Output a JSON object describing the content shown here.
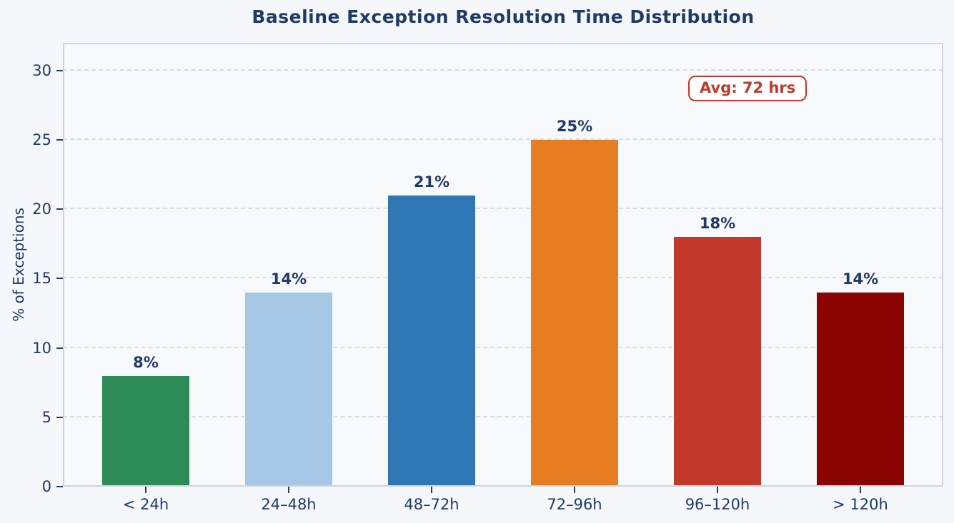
{
  "figure": {
    "background": "#f5f7fb",
    "plot_background": "#f8f9fc"
  },
  "chart_data": {
    "type": "bar",
    "title": "Baseline Exception Resolution Time Distribution",
    "xlabel": "",
    "ylabel": "% of Exceptions",
    "categories": [
      "< 24h",
      "24–48h",
      "48–72h",
      "72–96h",
      "96–120h",
      "> 120h"
    ],
    "values": [
      8,
      14,
      21,
      25,
      18,
      14
    ],
    "value_labels": [
      "8%",
      "14%",
      "21%",
      "25%",
      "18%",
      "14%"
    ],
    "bar_colors": [
      "#2e8b57",
      "#a6c8e4",
      "#2f76b4",
      "#e77c22",
      "#c2392b",
      "#8b0404"
    ],
    "ylim": [
      0,
      32
    ],
    "yticks": [
      0,
      5,
      10,
      15,
      20,
      25,
      30
    ],
    "grid": "horizontal-dashed",
    "legend": "none",
    "annotation": "Avg: 72 hrs"
  },
  "colors": {
    "text": "#1f3a64",
    "annotation": "#c0392b",
    "spine": "#ccd4e2",
    "grid": "#d9dbe2",
    "tick": "#2c3e5f"
  }
}
